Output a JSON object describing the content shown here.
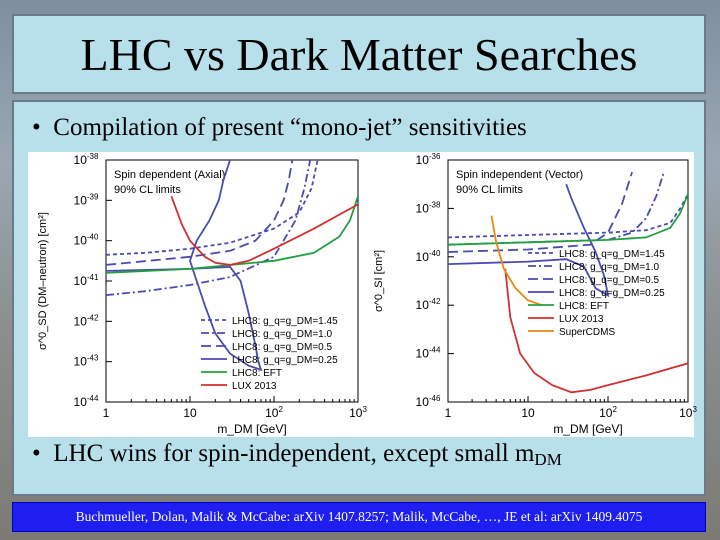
{
  "slide": {
    "title": "LHC vs Dark Matter Searches",
    "bullet1": "Compilation of present “mono-jet” sensitivities",
    "bullet2_main": "LHC wins for spin-independent, except small m",
    "bullet2_sub": "DM",
    "footer": "Buchmueller, Dolan, Malik & McCabe: arXiv 1407.8257; Malik, McCabe, …, JE et al: arXiv 1409.4075"
  },
  "chart_data": [
    {
      "type": "line",
      "panel_text": [
        "Spin dependent (Axial)",
        "90% CL limits"
      ],
      "xlabel": "m_DM [GeV]",
      "ylabel": "σ^0_SD (DM–neutron) [cm²]",
      "x_log": true,
      "y_log": true,
      "xlim": [
        1,
        1000
      ],
      "ylim": [
        1e-44,
        1e-38
      ],
      "x_ticks": [
        "1",
        "10",
        "10^2",
        "10^3"
      ],
      "y_ticks": [
        "10^-44",
        "10^-43",
        "10^-42",
        "10^-41",
        "10^-40",
        "10^-39",
        "10^-38"
      ],
      "legend_position": "bottom-left",
      "series": [
        {
          "name": "LHC8: g_q=g_DM=1.45",
          "color": "#4a4ab0",
          "dash": "short",
          "x": [
            1,
            3,
            10,
            30,
            100,
            200,
            280,
            330
          ],
          "y": [
            -40.35,
            -40.3,
            -40.2,
            -40.05,
            -39.7,
            -39.3,
            -38.7,
            -38.0
          ]
        },
        {
          "name": "LHC8: g_q=g_DM=1.0",
          "color": "#4a4ab0",
          "dash": "dashdot",
          "x": [
            1,
            3,
            10,
            30,
            100,
            180,
            230,
            270
          ],
          "y": [
            -41.35,
            -41.25,
            -41.1,
            -40.9,
            -40.4,
            -39.5,
            -38.7,
            -38.0
          ]
        },
        {
          "name": "LHC8: g_q=g_DM=0.5",
          "color": "#4a4ab0",
          "dash": "long",
          "x": [
            1,
            10,
            30,
            60,
            100,
            130,
            150,
            165
          ],
          "y": [
            -40.6,
            -40.4,
            -40.25,
            -40.0,
            -39.5,
            -39.0,
            -38.5,
            -38.0
          ]
        },
        {
          "name": "LHC8: g_q=g_DM=0.25",
          "color": "#4a4ab0",
          "dash": "solid",
          "x": [
            1,
            10,
            30,
            40,
            50,
            60,
            65,
            70,
            50,
            30,
            20,
            15,
            12,
            10,
            12,
            17,
            22,
            25,
            30
          ],
          "y": [
            -40.75,
            -40.7,
            -40.65,
            -41.0,
            -41.8,
            -42.6,
            -43.0,
            -43.2,
            -43.1,
            -42.8,
            -42.3,
            -41.6,
            -41.0,
            -40.5,
            -40.0,
            -39.5,
            -39.0,
            -38.5,
            -38.0
          ]
        },
        {
          "name": "LHC8: EFT",
          "color": "#22a040",
          "dash": "solid",
          "x": [
            1,
            10,
            100,
            300,
            600,
            800,
            1000
          ],
          "y": [
            -40.8,
            -40.7,
            -40.5,
            -40.3,
            -39.9,
            -39.5,
            -38.9
          ]
        },
        {
          "name": "LUX 2013",
          "color": "#d03030",
          "dash": "solid",
          "x": [
            6,
            8,
            10,
            15,
            20,
            30,
            50,
            100,
            300,
            1000
          ],
          "y": [
            -38.9,
            -39.6,
            -40.0,
            -40.4,
            -40.55,
            -40.6,
            -40.5,
            -40.2,
            -39.7,
            -39.1
          ]
        }
      ]
    },
    {
      "type": "line",
      "panel_text": [
        "Spin independent (Vector)",
        "90% CL limits"
      ],
      "xlabel": "m_DM [GeV]",
      "ylabel": "σ^0_SI [cm²]",
      "x_log": true,
      "y_log": true,
      "xlim": [
        1,
        1000
      ],
      "ylim": [
        1e-46,
        1e-36
      ],
      "x_ticks": [
        "1",
        "10",
        "10^2",
        "10^3"
      ],
      "y_ticks": [
        "10^-46",
        "10^-44",
        "10^-42",
        "10^-40",
        "10^-38",
        "10^-36"
      ],
      "legend_position": "bottom-right",
      "series": [
        {
          "name": "LHC8: g_q=g_DM=1.45",
          "color": "#4a4ab0",
          "dash": "short",
          "x": [
            1,
            10,
            100,
            300,
            600,
            800,
            1000
          ],
          "y": [
            -39.2,
            -39.1,
            -39.0,
            -38.9,
            -38.6,
            -38.0,
            -37.4
          ]
        },
        {
          "name": "LHC8: g_q=g_DM=1.0",
          "color": "#4a4ab0",
          "dash": "dashdot",
          "x": [
            1,
            10,
            100,
            200,
            300,
            400,
            500
          ],
          "y": [
            -39.5,
            -39.4,
            -39.3,
            -39.0,
            -38.4,
            -37.5,
            -36.5
          ]
        },
        {
          "name": "LHC8: g_q=g_DM=0.5",
          "color": "#4a4ab0",
          "dash": "long",
          "x": [
            1,
            10,
            60,
            100,
            150,
            200
          ],
          "y": [
            -39.8,
            -39.7,
            -39.5,
            -39.0,
            -37.8,
            -36.5
          ]
        },
        {
          "name": "LHC8: g_q=g_DM=0.25",
          "color": "#4a4ab0",
          "dash": "solid",
          "x": [
            1,
            10,
            30,
            50,
            70,
            100,
            90,
            70,
            50,
            35,
            30
          ],
          "y": [
            -40.3,
            -40.2,
            -40.1,
            -40.4,
            -41.3,
            -41.6,
            -40.8,
            -39.8,
            -38.8,
            -37.6,
            -37.0
          ]
        },
        {
          "name": "LHC8: EFT",
          "color": "#22a040",
          "dash": "solid",
          "x": [
            1,
            10,
            100,
            300,
            600,
            800,
            1000
          ],
          "y": [
            -39.5,
            -39.4,
            -39.3,
            -39.2,
            -38.8,
            -38.2,
            -37.4
          ]
        },
        {
          "name": "LUX 2013",
          "color": "#d03030",
          "dash": "solid",
          "x": [
            5.2,
            6,
            8,
            12,
            20,
            35,
            60,
            100,
            300,
            1000
          ],
          "y": [
            -40.5,
            -42.5,
            -44.0,
            -44.8,
            -45.3,
            -45.6,
            -45.5,
            -45.3,
            -44.9,
            -44.4
          ]
        },
        {
          "name": "SuperCDMS",
          "color": "#e88a10",
          "dash": "solid",
          "x": [
            3.5,
            4,
            5,
            7,
            10,
            15
          ],
          "y": [
            -38.3,
            -39.4,
            -40.5,
            -41.3,
            -41.8,
            -42.0
          ]
        }
      ]
    }
  ]
}
